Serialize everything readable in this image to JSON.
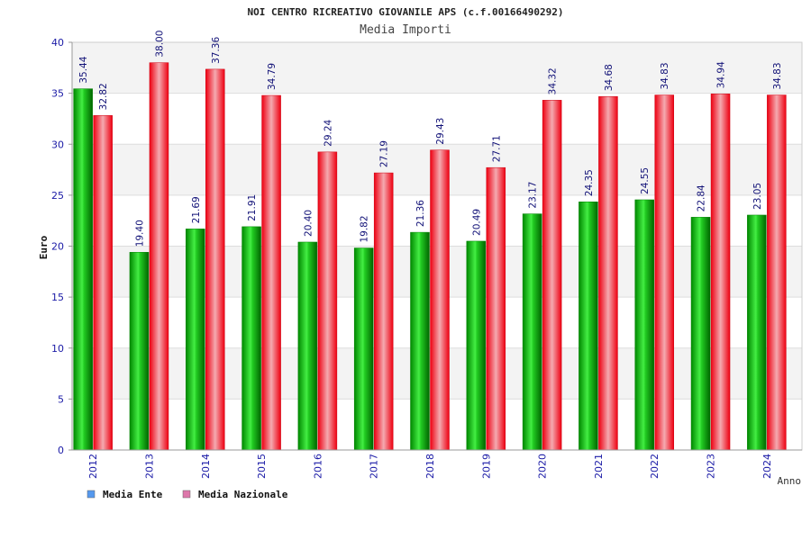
{
  "chart_data": {
    "type": "bar",
    "title": "NOI CENTRO RICREATIVO GIOVANILE APS (c.f.00166490292)",
    "subtitle": "Media Importi",
    "xlabel": "Anno",
    "ylabel": "Euro",
    "ylim": [
      0,
      40
    ],
    "yticks": [
      0,
      5,
      10,
      15,
      20,
      25,
      30,
      35,
      40
    ],
    "categories": [
      "2012",
      "2013",
      "2014",
      "2015",
      "2016",
      "2017",
      "2018",
      "2019",
      "2020",
      "2021",
      "2022",
      "2023",
      "2024"
    ],
    "series": [
      {
        "name": "Media Ente",
        "color": "#00b400",
        "legend_color": "#5599ee",
        "values": [
          35.44,
          19.4,
          21.69,
          21.91,
          20.4,
          19.82,
          21.36,
          20.49,
          23.17,
          24.35,
          24.55,
          22.84,
          23.05
        ],
        "labels": [
          "35.44",
          "19.40",
          "21.69",
          "21.91",
          "20.40",
          "19.82",
          "21.36",
          "20.49",
          "23.17",
          "24.35",
          "24.55",
          "22.84",
          "23.05"
        ]
      },
      {
        "name": "Media Nazionale",
        "color": "#ee1122",
        "legend_color": "#dd77aa",
        "values": [
          32.82,
          38.0,
          37.36,
          34.79,
          29.24,
          27.19,
          29.43,
          27.71,
          34.32,
          34.68,
          34.83,
          34.94,
          34.83
        ],
        "labels": [
          "32.82",
          "38.00",
          "37.36",
          "34.79",
          "29.24",
          "27.19",
          "29.43",
          "27.71",
          "34.32",
          "34.68",
          "34.83",
          "34.94",
          "34.83"
        ]
      }
    ],
    "grid": true,
    "legend": "bottom-left"
  }
}
